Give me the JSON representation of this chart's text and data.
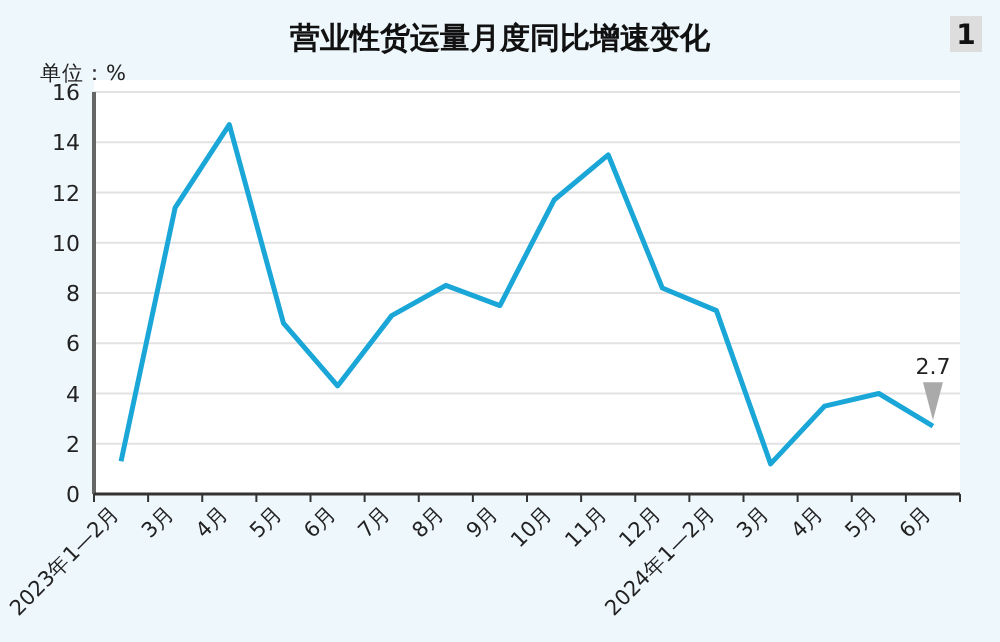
{
  "chart_data": {
    "type": "line",
    "title": "营业性货运量月度同比增速变化",
    "ylabel": "单位：%",
    "categories": [
      "2023年1—2月",
      "3月",
      "4月",
      "5月",
      "6月",
      "7月",
      "8月",
      "9月",
      "10月",
      "11月",
      "12月",
      "2024年1—2月",
      "3月",
      "4月",
      "5月",
      "6月"
    ],
    "series": [
      {
        "color": "#1aa7d8",
        "values": [
          1.3,
          11.4,
          14.7,
          6.8,
          4.3,
          7.1,
          8.3,
          7.5,
          11.7,
          13.5,
          8.2,
          7.3,
          1.2,
          3.5,
          4.0,
          2.7
        ],
        "value_labels": [
          null,
          null,
          null,
          null,
          null,
          null,
          null,
          null,
          null,
          null,
          null,
          null,
          null,
          null,
          null,
          "2.7"
        ]
      }
    ],
    "ylim": [
      0,
      16
    ],
    "yticks": [
      0,
      2,
      4,
      6,
      8,
      10,
      12,
      14,
      16
    ],
    "grid": "y",
    "annotations": [
      "1"
    ]
  }
}
